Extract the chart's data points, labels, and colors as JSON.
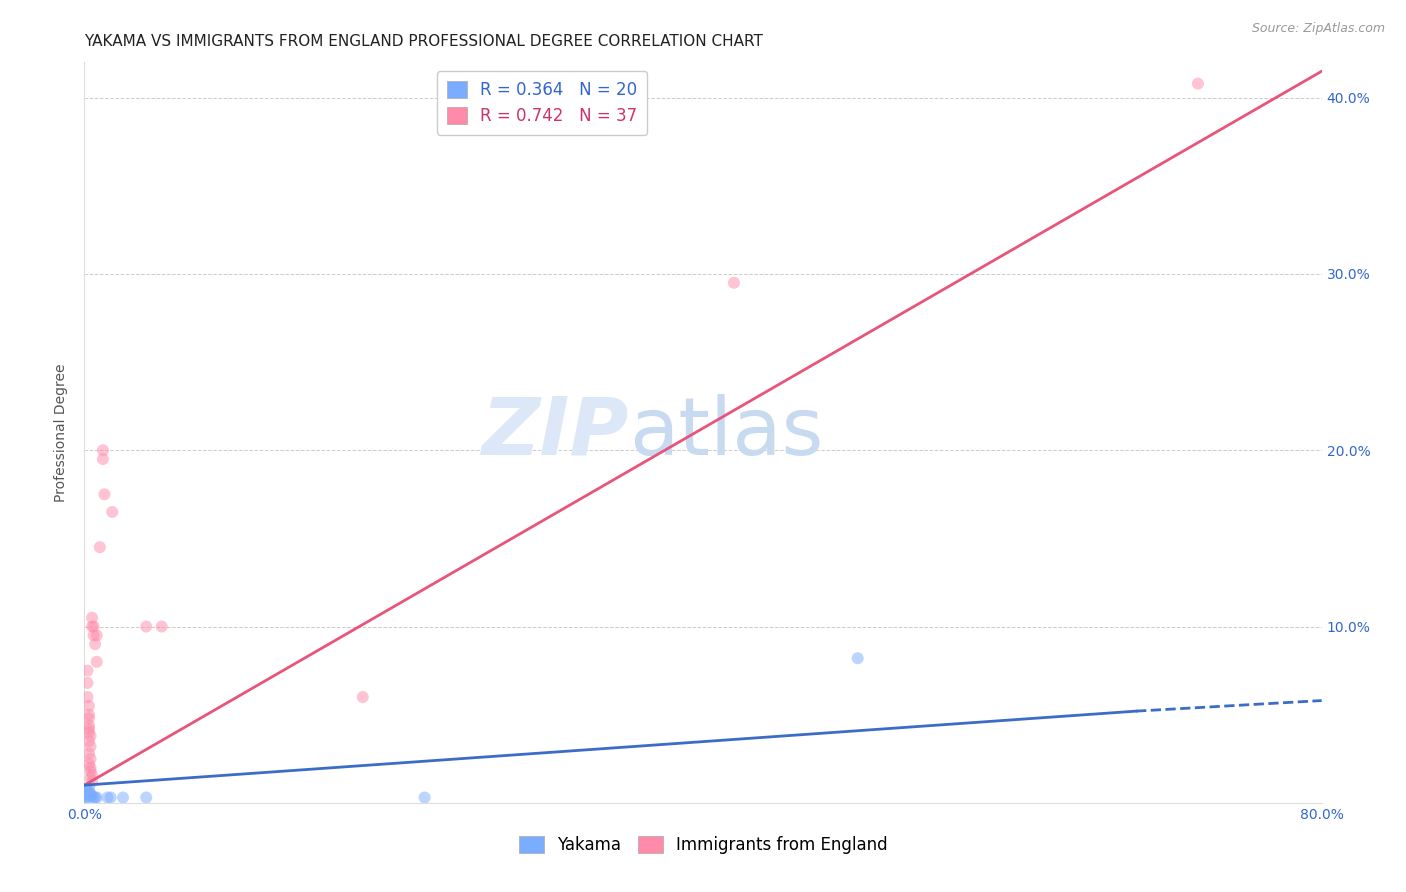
{
  "title": "YAKAMA VS IMMIGRANTS FROM ENGLAND PROFESSIONAL DEGREE CORRELATION CHART",
  "source": "Source: ZipAtlas.com",
  "ylabel": "Professional Degree",
  "xlim": [
    0.0,
    0.8
  ],
  "ylim": [
    0.0,
    0.42
  ],
  "xticks": [
    0.0,
    0.1,
    0.2,
    0.3,
    0.4,
    0.5,
    0.6,
    0.7,
    0.8
  ],
  "xticklabels": [
    "0.0%",
    "",
    "",
    "",
    "",
    "",
    "",
    "",
    "80.0%"
  ],
  "yticks": [
    0.0,
    0.1,
    0.2,
    0.3,
    0.4
  ],
  "yticklabels_right": [
    "",
    "10.0%",
    "20.0%",
    "30.0%",
    "40.0%"
  ],
  "grid_color": "#cccccc",
  "background_color": "#ffffff",
  "legend_entries": [
    {
      "label": "R = 0.364   N = 20",
      "color": "#6699ff"
    },
    {
      "label": "R = 0.742   N = 37",
      "color": "#ff6688"
    }
  ],
  "watermark_zip": "ZIP",
  "watermark_atlas": "atlas",
  "yakama_points": [
    [
      0.001,
      0.008
    ],
    [
      0.002,
      0.007
    ],
    [
      0.001,
      0.005
    ],
    [
      0.003,
      0.006
    ],
    [
      0.004,
      0.004
    ],
    [
      0.002,
      0.004
    ],
    [
      0.001,
      0.003
    ],
    [
      0.003,
      0.008
    ],
    [
      0.005,
      0.004
    ],
    [
      0.004,
      0.005
    ],
    [
      0.002,
      0.003
    ],
    [
      0.006,
      0.003
    ],
    [
      0.008,
      0.003
    ],
    [
      0.007,
      0.003
    ],
    [
      0.015,
      0.003
    ],
    [
      0.017,
      0.003
    ],
    [
      0.025,
      0.003
    ],
    [
      0.04,
      0.003
    ],
    [
      0.5,
      0.082
    ],
    [
      0.22,
      0.003
    ]
  ],
  "england_points": [
    [
      0.002,
      0.075
    ],
    [
      0.002,
      0.068
    ],
    [
      0.002,
      0.06
    ],
    [
      0.003,
      0.055
    ],
    [
      0.003,
      0.05
    ],
    [
      0.003,
      0.048
    ],
    [
      0.003,
      0.044
    ],
    [
      0.003,
      0.042
    ],
    [
      0.003,
      0.04
    ],
    [
      0.004,
      0.038
    ],
    [
      0.003,
      0.035
    ],
    [
      0.004,
      0.032
    ],
    [
      0.003,
      0.028
    ],
    [
      0.004,
      0.025
    ],
    [
      0.003,
      0.022
    ],
    [
      0.004,
      0.02
    ],
    [
      0.004,
      0.018
    ],
    [
      0.005,
      0.016
    ],
    [
      0.004,
      0.014
    ],
    [
      0.005,
      0.012
    ],
    [
      0.005,
      0.1
    ],
    [
      0.005,
      0.105
    ],
    [
      0.006,
      0.095
    ],
    [
      0.006,
      0.1
    ],
    [
      0.007,
      0.09
    ],
    [
      0.008,
      0.095
    ],
    [
      0.008,
      0.08
    ],
    [
      0.01,
      0.145
    ],
    [
      0.012,
      0.195
    ],
    [
      0.012,
      0.2
    ],
    [
      0.013,
      0.175
    ],
    [
      0.018,
      0.165
    ],
    [
      0.04,
      0.1
    ],
    [
      0.05,
      0.1
    ],
    [
      0.42,
      0.295
    ],
    [
      0.72,
      0.408
    ],
    [
      0.18,
      0.06
    ]
  ],
  "yakama_color": "#7aadff",
  "england_color": "#ff8aaa",
  "yakama_line_color": "#3b6cc7",
  "england_line_color": "#e8547a",
  "yakama_line_solid": [
    [
      0.0,
      0.01
    ],
    [
      0.68,
      0.052
    ]
  ],
  "yakama_line_dashed": [
    [
      0.68,
      0.052
    ],
    [
      0.8,
      0.058
    ]
  ],
  "england_line": [
    [
      0.0,
      0.01
    ],
    [
      0.8,
      0.415
    ]
  ],
  "marker_size": 75,
  "marker_alpha": 0.5,
  "title_fontsize": 11,
  "axis_label_fontsize": 10,
  "tick_fontsize": 10,
  "tick_color": "#3366cc",
  "legend_fontsize": 12,
  "source_fontsize": 9
}
